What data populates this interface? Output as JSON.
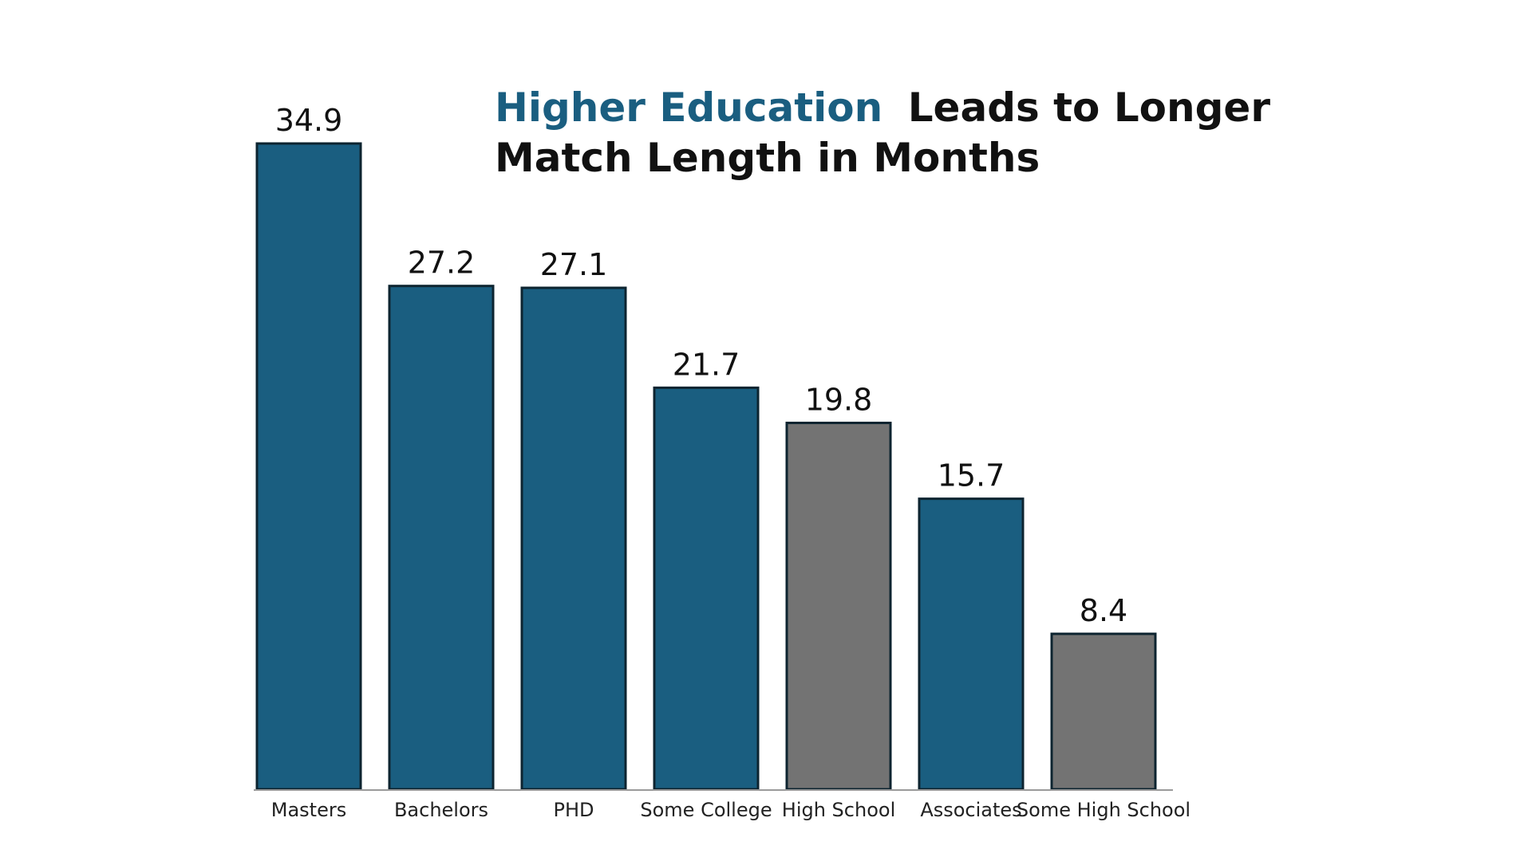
{
  "chart_data": {
    "type": "bar",
    "title_highlight": "Higher Education",
    "title_rest_line1": "Leads to Longer",
    "title_line2": "Match Length in Months",
    "categories": [
      "Masters",
      "Bachelors",
      "PHD",
      "Some College",
      "High School",
      "Associates",
      "Some High School"
    ],
    "values": [
      34.9,
      27.2,
      27.1,
      21.7,
      19.8,
      15.7,
      8.4
    ],
    "value_labels": [
      "34.9",
      "27.2",
      "27.1",
      "21.7",
      "19.8",
      "15.7",
      "8.4"
    ],
    "bar_colors": [
      "#1a5e80",
      "#1a5e80",
      "#1a5e80",
      "#1a5e80",
      "#737373",
      "#1a5e80",
      "#737373"
    ],
    "ylim": [
      0,
      34.9
    ],
    "grid": false,
    "legend": "none",
    "xlabel": "",
    "ylabel": ""
  },
  "colors": {
    "highlight": "#1a5e80",
    "title": "#111111",
    "bar_stroke": "#0d2430",
    "axis": "#9a9a9a"
  }
}
